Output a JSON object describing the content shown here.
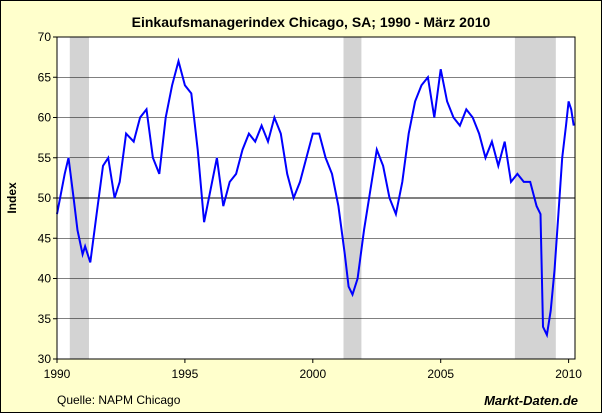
{
  "chart_data": {
    "type": "line",
    "title": "Einkaufsmanagerindex Chicago, SA; 1990 -  März 2010",
    "ylabel": "Index",
    "xlabel": "",
    "source": "Quelle: NAPM Chicago",
    "brand": "Markt-Daten.de",
    "ylim": [
      30,
      70
    ],
    "xlim": [
      1990,
      2010.25
    ],
    "y_ticks": [
      30,
      35,
      40,
      45,
      50,
      55,
      60,
      65,
      70
    ],
    "x_ticks": [
      1990,
      1995,
      2000,
      2005,
      2010
    ],
    "reference_line": 50,
    "line_color": "#0000ff",
    "recession_color": "#d3d3d3",
    "recession_bands": [
      [
        1990.5,
        1991.25
      ],
      [
        2001.2,
        2001.9
      ],
      [
        2007.9,
        2009.5
      ]
    ],
    "series": [
      {
        "x": [
          1990.0,
          1990.3,
          1990.45,
          1990.65,
          1990.8,
          1991.0,
          1991.1,
          1991.3,
          1991.55,
          1991.8,
          1992.0,
          1992.25,
          1992.45,
          1992.7,
          1993.0,
          1993.25,
          1993.5,
          1993.75,
          1994.0,
          1994.25,
          1994.5,
          1994.75,
          1995.0,
          1995.25,
          1995.5,
          1995.75,
          1996.0,
          1996.25,
          1996.5,
          1996.75,
          1997.0,
          1997.25,
          1997.5,
          1997.75,
          1998.0,
          1998.25,
          1998.5,
          1998.75,
          1999.0,
          1999.25,
          1999.5,
          1999.75,
          2000.0,
          2000.25,
          2000.5,
          2000.75,
          2001.0,
          2001.25,
          2001.4,
          2001.55,
          2001.75,
          2002.0,
          2002.25,
          2002.5,
          2002.75,
          2003.0,
          2003.25,
          2003.5,
          2003.75,
          2004.0,
          2004.25,
          2004.5,
          2004.75,
          2005.0,
          2005.25,
          2005.5,
          2005.75,
          2006.0,
          2006.25,
          2006.5,
          2006.75,
          2007.0,
          2007.25,
          2007.5,
          2007.75,
          2008.0,
          2008.25,
          2008.5,
          2008.75,
          2008.9,
          2009.0,
          2009.15,
          2009.3,
          2009.45,
          2009.6,
          2009.75,
          2009.9,
          2010.0,
          2010.1,
          2010.2
        ],
        "values": [
          48,
          53,
          55,
          50,
          46,
          43,
          44,
          42,
          48,
          54,
          55,
          50,
          52,
          58,
          57,
          60,
          61,
          55,
          53,
          60,
          64,
          67,
          64,
          63,
          56,
          47,
          51,
          55,
          49,
          52,
          53,
          56,
          58,
          57,
          59,
          57,
          60,
          58,
          53,
          50,
          52,
          55,
          58,
          58,
          55,
          53,
          49,
          43,
          39,
          38,
          40,
          46,
          51,
          56,
          54,
          50,
          48,
          52,
          58,
          62,
          64,
          65,
          60,
          66,
          62,
          60,
          59,
          61,
          60,
          58,
          55,
          57,
          54,
          57,
          52,
          53,
          52,
          52,
          49,
          48,
          34,
          33,
          36,
          41,
          48,
          55,
          59,
          62,
          61,
          59
        ]
      }
    ]
  }
}
